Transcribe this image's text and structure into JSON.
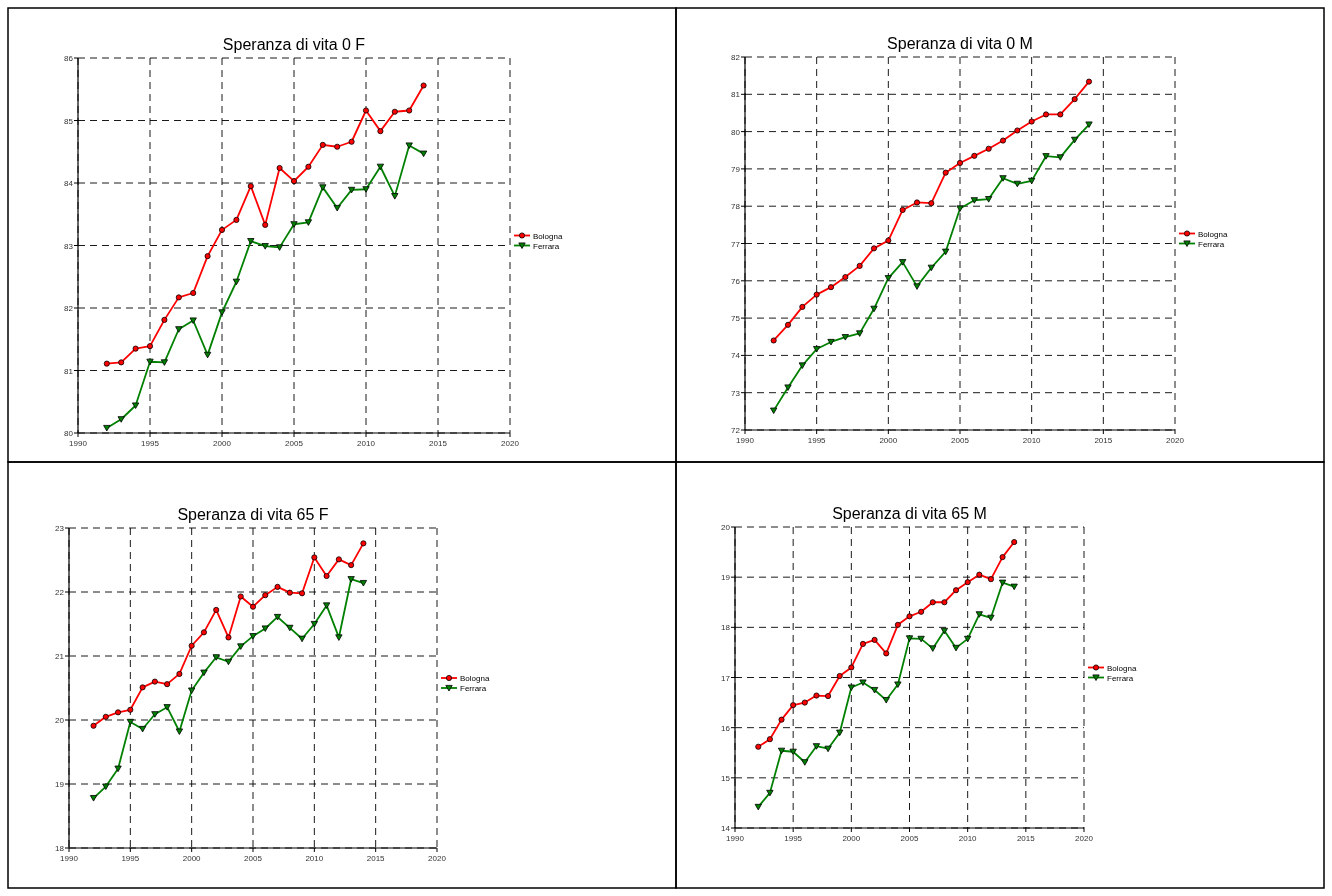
{
  "chart_data": [
    {
      "type": "line",
      "title": "Speranza di vita 0 F",
      "x": [
        1992,
        1993,
        1994,
        1995,
        1996,
        1997,
        1998,
        1999,
        2000,
        2001,
        2002,
        2003,
        2004,
        2005,
        2006,
        2007,
        2008,
        2009,
        2010,
        2011,
        2012,
        2013,
        2014
      ],
      "xlim": [
        1990,
        2020
      ],
      "xticks": [
        1990,
        1995,
        2000,
        2005,
        2010,
        2015,
        2020
      ],
      "ylim": [
        80,
        86
      ],
      "yticks": [
        80,
        81,
        82,
        83,
        84,
        85,
        86
      ],
      "grid": true,
      "legend": "right",
      "line_style": "solid",
      "series": [
        {
          "name": "Bologna",
          "color": "#ff0000",
          "marker": "circle",
          "values": [
            81.11,
            81.13,
            81.35,
            81.39,
            81.81,
            82.17,
            82.24,
            82.83,
            83.25,
            83.41,
            83.95,
            83.33,
            84.24,
            84.03,
            84.26,
            84.61,
            84.58,
            84.66,
            85.16,
            84.83,
            85.14,
            85.16,
            85.56
          ]
        },
        {
          "name": "Ferrara",
          "color": "#008000",
          "marker": "triangle",
          "values": [
            80.08,
            80.22,
            80.44,
            81.14,
            81.13,
            81.66,
            81.8,
            81.25,
            81.93,
            82.42,
            83.07,
            82.99,
            82.97,
            83.34,
            83.37,
            83.93,
            83.6,
            83.89,
            83.9,
            84.26,
            83.79,
            84.6,
            84.47
          ]
        }
      ]
    },
    {
      "type": "line",
      "title": "Speranza di vita 0 M",
      "x": [
        1992,
        1993,
        1994,
        1995,
        1996,
        1997,
        1998,
        1999,
        2000,
        2001,
        2002,
        2003,
        2004,
        2005,
        2006,
        2007,
        2008,
        2009,
        2010,
        2011,
        2012,
        2013,
        2014
      ],
      "xlim": [
        1990,
        2020
      ],
      "xticks": [
        1990,
        1995,
        2000,
        2005,
        2010,
        2015,
        2020
      ],
      "ylim": [
        72,
        82
      ],
      "yticks": [
        72,
        73,
        74,
        75,
        76,
        77,
        78,
        79,
        80,
        81,
        82
      ],
      "grid": true,
      "legend": "right",
      "line_style": "solid",
      "series": [
        {
          "name": "Bologna",
          "color": "#ff0000",
          "marker": "circle",
          "values": [
            74.4,
            74.82,
            75.3,
            75.63,
            75.83,
            76.1,
            76.4,
            76.87,
            77.08,
            77.9,
            78.1,
            78.08,
            78.9,
            79.16,
            79.35,
            79.54,
            79.76,
            80.03,
            80.27,
            80.46,
            80.46,
            80.87,
            81.34
          ]
        },
        {
          "name": "Ferrara",
          "color": "#008000",
          "marker": "triangle",
          "values": [
            72.52,
            73.14,
            73.73,
            74.17,
            74.36,
            74.49,
            74.59,
            75.25,
            76.07,
            76.5,
            75.85,
            76.35,
            76.78,
            77.94,
            78.16,
            78.19,
            78.75,
            78.6,
            78.68,
            79.34,
            79.31,
            79.78,
            80.19
          ]
        }
      ]
    },
    {
      "type": "line",
      "title": "Speranza di vita 65 F",
      "x": [
        1992,
        1993,
        1994,
        1995,
        1996,
        1997,
        1998,
        1999,
        2000,
        2001,
        2002,
        2003,
        2004,
        2005,
        2006,
        2007,
        2008,
        2009,
        2010,
        2011,
        2012,
        2013,
        2014
      ],
      "xlim": [
        1990,
        2020
      ],
      "xticks": [
        1990,
        1995,
        2000,
        2005,
        2010,
        2015,
        2020
      ],
      "ylim": [
        18,
        23
      ],
      "yticks": [
        18,
        19,
        20,
        21,
        22,
        23
      ],
      "grid": true,
      "legend": "right",
      "line_style": "solid",
      "series": [
        {
          "name": "Bologna",
          "color": "#ff0000",
          "marker": "circle",
          "values": [
            19.91,
            20.05,
            20.12,
            20.16,
            20.51,
            20.6,
            20.56,
            20.72,
            21.16,
            21.37,
            21.72,
            21.29,
            21.93,
            21.77,
            21.95,
            22.08,
            21.99,
            21.98,
            22.54,
            22.25,
            22.51,
            22.42,
            22.76
          ]
        },
        {
          "name": "Ferrara",
          "color": "#008000",
          "marker": "triangle",
          "values": [
            18.78,
            18.96,
            19.24,
            19.97,
            19.86,
            20.09,
            20.2,
            19.82,
            20.46,
            20.74,
            20.98,
            20.91,
            21.15,
            21.31,
            21.43,
            21.61,
            21.44,
            21.27,
            21.5,
            21.79,
            21.29,
            22.2,
            22.14
          ]
        }
      ]
    },
    {
      "type": "line",
      "title": "Speranza di vita 65 M",
      "x": [
        1992,
        1993,
        1994,
        1995,
        1996,
        1997,
        1998,
        1999,
        2000,
        2001,
        2002,
        2003,
        2004,
        2005,
        2006,
        2007,
        2008,
        2009,
        2010,
        2011,
        2012,
        2013,
        2014
      ],
      "xlim": [
        1990,
        2020
      ],
      "xticks": [
        1990,
        1995,
        2000,
        2005,
        2010,
        2015,
        2020
      ],
      "ylim": [
        14,
        20
      ],
      "yticks": [
        14,
        15,
        16,
        17,
        18,
        19,
        20
      ],
      "grid": true,
      "legend": "right",
      "line_style": "solid",
      "series": [
        {
          "name": "Bologna",
          "color": "#ff0000",
          "marker": "circle",
          "values": [
            15.62,
            15.77,
            16.16,
            16.45,
            16.5,
            16.64,
            16.63,
            17.03,
            17.2,
            17.67,
            17.75,
            17.48,
            18.05,
            18.22,
            18.31,
            18.5,
            18.5,
            18.74,
            18.9,
            19.05,
            18.96,
            19.4,
            19.7
          ]
        },
        {
          "name": "Ferrara",
          "color": "#008000",
          "marker": "triangle",
          "values": [
            14.42,
            14.7,
            15.54,
            15.52,
            15.31,
            15.63,
            15.58,
            15.9,
            16.8,
            16.9,
            16.75,
            16.55,
            16.86,
            17.78,
            17.77,
            17.58,
            17.93,
            17.59,
            17.77,
            18.26,
            18.19,
            18.89,
            18.81
          ]
        }
      ]
    }
  ]
}
